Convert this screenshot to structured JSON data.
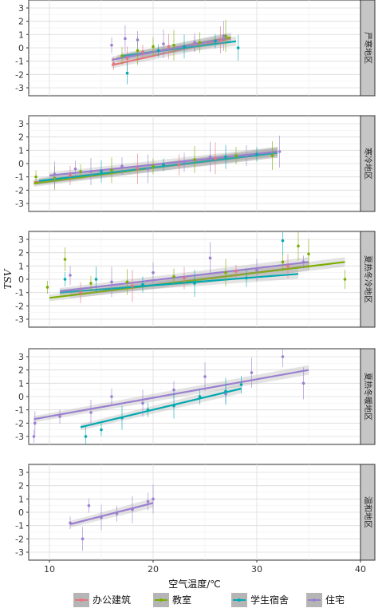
{
  "chart_data": {
    "type": "scatter",
    "xlabel": "空气温度/℃",
    "ylabel": "TSV",
    "xlim": [
      8,
      40
    ],
    "ylim": [
      -3.6,
      3.6
    ],
    "xticks": [
      10,
      20,
      30,
      40
    ],
    "yticks": [
      -3,
      -2,
      -1,
      0,
      1,
      2,
      3
    ],
    "grid": true,
    "legend_position": "bottom",
    "colors": {
      "办公建筑": "#e8747c",
      "教室": "#7cae00",
      "学生宿舍": "#00a9b0",
      "住宅": "#9b7fd0"
    },
    "series_names": [
      "办公建筑",
      "教室",
      "学生宿舍",
      "住宅"
    ],
    "panels": [
      {
        "strip": "严寒地区",
        "fits": [
          {
            "series": "办公建筑",
            "x": [
              16,
              27.5
            ],
            "y": [
              -1.3,
              0.7
            ]
          },
          {
            "series": "教室",
            "x": [
              16.5,
              27.5
            ],
            "y": [
              -0.8,
              0.8
            ]
          },
          {
            "series": "学生宿舍",
            "x": [
              17,
              28
            ],
            "y": [
              -0.6,
              0.5
            ]
          },
          {
            "series": "住宅",
            "x": [
              16,
              27
            ],
            "y": [
              -0.9,
              0.7
            ]
          }
        ],
        "points": [
          {
            "series": "办公建筑",
            "x": 16.2,
            "y": -1.2
          },
          {
            "series": "办公建筑",
            "x": 17.5,
            "y": -0.8
          },
          {
            "series": "办公建筑",
            "x": 19.0,
            "y": -0.3
          },
          {
            "series": "办公建筑",
            "x": 21.5,
            "y": 0.1
          },
          {
            "series": "办公建筑",
            "x": 24.0,
            "y": 0.3
          },
          {
            "series": "办公建筑",
            "x": 26.5,
            "y": 0.6
          },
          {
            "series": "教室",
            "x": 17.0,
            "y": -0.6
          },
          {
            "series": "教室",
            "x": 18.5,
            "y": -0.2
          },
          {
            "series": "教室",
            "x": 20.0,
            "y": 0.1
          },
          {
            "series": "教室",
            "x": 22.0,
            "y": 0.2
          },
          {
            "series": "教室",
            "x": 24.5,
            "y": 0.4
          },
          {
            "series": "教室",
            "x": 27.0,
            "y": 0.9
          },
          {
            "series": "学生宿舍",
            "x": 17.5,
            "y": -1.9
          },
          {
            "series": "学生宿舍",
            "x": 20.5,
            "y": -0.2
          },
          {
            "series": "学生宿舍",
            "x": 23.0,
            "y": 0.1
          },
          {
            "series": "学生宿舍",
            "x": 26.0,
            "y": 0.5
          },
          {
            "series": "学生宿舍",
            "x": 28.2,
            "y": 0.0
          },
          {
            "series": "住宅",
            "x": 16.0,
            "y": 0.2
          },
          {
            "series": "住宅",
            "x": 17.3,
            "y": 0.7
          },
          {
            "series": "住宅",
            "x": 18.5,
            "y": 0.6
          },
          {
            "series": "住宅",
            "x": 21.0,
            "y": 0.3
          },
          {
            "series": "住宅",
            "x": 24.0,
            "y": 0.4
          },
          {
            "series": "住宅",
            "x": 26.8,
            "y": 0.9
          }
        ]
      },
      {
        "strip": "寒冷地区",
        "fits": [
          {
            "series": "办公建筑",
            "x": [
              8.5,
              32
            ],
            "y": [
              -1.4,
              0.8
            ]
          },
          {
            "series": "教室",
            "x": [
              8.5,
              32
            ],
            "y": [
              -1.5,
              0.9
            ]
          },
          {
            "series": "学生宿舍",
            "x": [
              9,
              32
            ],
            "y": [
              -1.3,
              0.8
            ]
          },
          {
            "series": "住宅",
            "x": [
              10,
              32
            ],
            "y": [
              -0.9,
              0.9
            ]
          }
        ],
        "points": [
          {
            "series": "教室",
            "x": 8.7,
            "y": -1.0
          },
          {
            "series": "教室",
            "x": 10.5,
            "y": -1.1
          },
          {
            "series": "教室",
            "x": 13.0,
            "y": -0.6
          },
          {
            "series": "教室",
            "x": 16.0,
            "y": -0.5
          },
          {
            "series": "教室",
            "x": 20.0,
            "y": -0.2
          },
          {
            "series": "教室",
            "x": 24.0,
            "y": 0.3
          },
          {
            "series": "教室",
            "x": 28.0,
            "y": 0.6
          },
          {
            "series": "教室",
            "x": 31.5,
            "y": 0.6
          },
          {
            "series": "办公建筑",
            "x": 12.0,
            "y": -0.9
          },
          {
            "series": "办公建筑",
            "x": 18.5,
            "y": -0.4
          },
          {
            "series": "办公建筑",
            "x": 22.5,
            "y": -0.1
          },
          {
            "series": "办公建筑",
            "x": 26.0,
            "y": 0.4
          },
          {
            "series": "学生宿舍",
            "x": 15.0,
            "y": -0.6
          },
          {
            "series": "学生宿舍",
            "x": 21.0,
            "y": -0.1
          },
          {
            "series": "学生宿舍",
            "x": 27.0,
            "y": 0.5
          },
          {
            "series": "学生宿舍",
            "x": 30.0,
            "y": 0.7
          },
          {
            "series": "住宅",
            "x": 10.5,
            "y": -0.8
          },
          {
            "series": "住宅",
            "x": 12.5,
            "y": -0.4
          },
          {
            "series": "住宅",
            "x": 14.0,
            "y": -0.6
          },
          {
            "series": "住宅",
            "x": 17.0,
            "y": -0.2
          },
          {
            "series": "住宅",
            "x": 19.5,
            "y": -0.4
          },
          {
            "series": "住宅",
            "x": 23.0,
            "y": 0.1
          },
          {
            "series": "住宅",
            "x": 25.5,
            "y": 0.5
          },
          {
            "series": "住宅",
            "x": 29.0,
            "y": 0.6
          },
          {
            "series": "住宅",
            "x": 32.2,
            "y": 0.9
          }
        ]
      },
      {
        "strip": "夏热冬冷地区",
        "fits": [
          {
            "series": "办公建筑",
            "x": [
              12,
              35
            ],
            "y": [
              -1.2,
              1.0
            ]
          },
          {
            "series": "教室",
            "x": [
              10,
              38.5
            ],
            "y": [
              -1.4,
              1.3
            ]
          },
          {
            "series": "学生宿舍",
            "x": [
              11,
              34
            ],
            "y": [
              -1.0,
              0.4
            ]
          },
          {
            "series": "住宅",
            "x": [
              11,
              35
            ],
            "y": [
              -0.9,
              1.3
            ]
          }
        ],
        "points": [
          {
            "series": "教室",
            "x": 9.8,
            "y": -0.6
          },
          {
            "series": "教室",
            "x": 11.5,
            "y": 1.5
          },
          {
            "series": "教室",
            "x": 14.0,
            "y": -0.3
          },
          {
            "series": "教室",
            "x": 17.5,
            "y": -0.2
          },
          {
            "series": "教室",
            "x": 22.0,
            "y": 0.2
          },
          {
            "series": "教室",
            "x": 27.0,
            "y": 0.5
          },
          {
            "series": "教室",
            "x": 32.5,
            "y": 1.3
          },
          {
            "series": "教室",
            "x": 34.0,
            "y": 2.5
          },
          {
            "series": "教室",
            "x": 38.5,
            "y": 0.0
          },
          {
            "series": "教室",
            "x": 35.0,
            "y": 1.9
          },
          {
            "series": "办公建筑",
            "x": 13.0,
            "y": -1.0
          },
          {
            "series": "办公建筑",
            "x": 18.0,
            "y": -0.5
          },
          {
            "series": "办公建筑",
            "x": 23.0,
            "y": 0.1
          },
          {
            "series": "办公建筑",
            "x": 28.0,
            "y": 0.6
          },
          {
            "series": "办公建筑",
            "x": 33.0,
            "y": 1.0
          },
          {
            "series": "学生宿舍",
            "x": 11.5,
            "y": 0.0
          },
          {
            "series": "学生宿舍",
            "x": 14.5,
            "y": 0.0
          },
          {
            "series": "学生宿舍",
            "x": 19.0,
            "y": -0.4
          },
          {
            "series": "学生宿舍",
            "x": 24.0,
            "y": -0.3
          },
          {
            "series": "学生宿舍",
            "x": 29.0,
            "y": 0.1
          },
          {
            "series": "学生宿舍",
            "x": 32.5,
            "y": 2.9
          },
          {
            "series": "住宅",
            "x": 12.0,
            "y": 0.3
          },
          {
            "series": "住宅",
            "x": 16.0,
            "y": -0.2
          },
          {
            "series": "住宅",
            "x": 20.0,
            "y": 0.5
          },
          {
            "series": "住宅",
            "x": 25.5,
            "y": 1.6
          },
          {
            "series": "住宅",
            "x": 30.0,
            "y": 0.7
          },
          {
            "series": "住宅",
            "x": 34.5,
            "y": 1.3
          }
        ]
      },
      {
        "strip": "夏热冬暖地区",
        "fits": [
          {
            "series": "学生宿舍",
            "x": [
              13,
              28.5
            ],
            "y": [
              -2.3,
              0.6
            ]
          },
          {
            "series": "住宅",
            "x": [
              8.5,
              35
            ],
            "y": [
              -1.7,
              2.0
            ]
          }
        ],
        "points": [
          {
            "series": "住宅",
            "x": 8.5,
            "y": -3.0
          },
          {
            "series": "住宅",
            "x": 8.6,
            "y": -2.0
          },
          {
            "series": "住宅",
            "x": 11.0,
            "y": -1.5
          },
          {
            "series": "住宅",
            "x": 14.0,
            "y": -1.2
          },
          {
            "series": "住宅",
            "x": 16.0,
            "y": 0.0
          },
          {
            "series": "住宅",
            "x": 19.0,
            "y": -0.5
          },
          {
            "series": "住宅",
            "x": 22.0,
            "y": 0.5
          },
          {
            "series": "住宅",
            "x": 25.0,
            "y": 1.5
          },
          {
            "series": "住宅",
            "x": 27.0,
            "y": 0.2
          },
          {
            "series": "住宅",
            "x": 29.5,
            "y": 1.8
          },
          {
            "series": "住宅",
            "x": 32.5,
            "y": 3.0
          },
          {
            "series": "住宅",
            "x": 34.5,
            "y": 1.0
          },
          {
            "series": "学生宿舍",
            "x": 13.5,
            "y": -3.0
          },
          {
            "series": "学生宿舍",
            "x": 15.0,
            "y": -2.5
          },
          {
            "series": "学生宿舍",
            "x": 17.0,
            "y": -1.6
          },
          {
            "series": "学生宿舍",
            "x": 19.5,
            "y": -1.0
          },
          {
            "series": "学生宿舍",
            "x": 22.0,
            "y": -0.7
          },
          {
            "series": "学生宿舍",
            "x": 24.5,
            "y": 0.0
          },
          {
            "series": "学生宿舍",
            "x": 27.0,
            "y": 0.4
          },
          {
            "series": "学生宿舍",
            "x": 28.5,
            "y": 0.9
          }
        ]
      },
      {
        "strip": "温和地区",
        "fits": [
          {
            "series": "住宅",
            "x": [
              12,
              20
            ],
            "y": [
              -0.9,
              0.7
            ]
          }
        ],
        "points": [
          {
            "series": "住宅",
            "x": 12.0,
            "y": -0.8
          },
          {
            "series": "住宅",
            "x": 13.2,
            "y": -2.0
          },
          {
            "series": "住宅",
            "x": 13.8,
            "y": 0.5
          },
          {
            "series": "住宅",
            "x": 15.0,
            "y": -0.4
          },
          {
            "series": "住宅",
            "x": 16.5,
            "y": -0.1
          },
          {
            "series": "住宅",
            "x": 18.0,
            "y": 0.2
          },
          {
            "series": "住宅",
            "x": 19.5,
            "y": 0.8
          },
          {
            "series": "住宅",
            "x": 20.0,
            "y": 1.0
          }
        ]
      }
    ]
  }
}
